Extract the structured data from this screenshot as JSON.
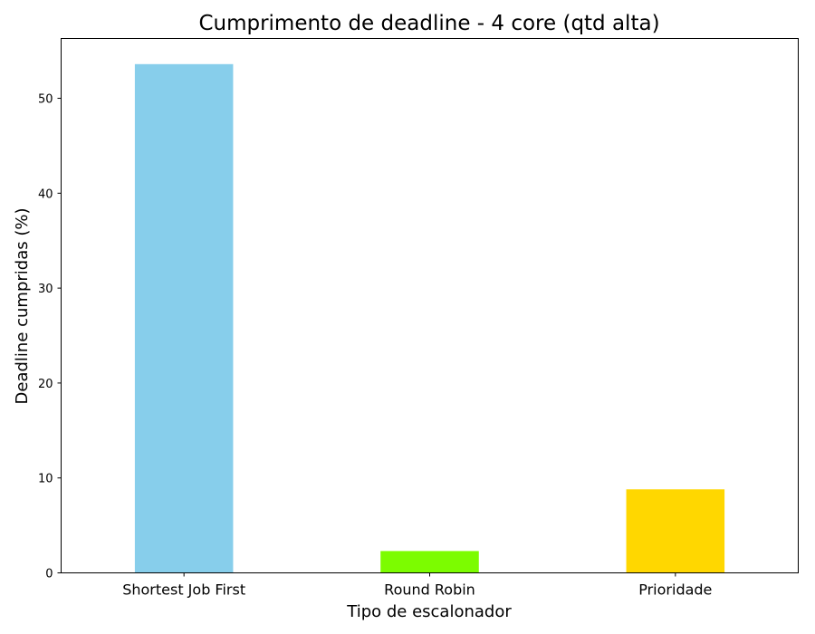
{
  "chart_data": {
    "type": "bar",
    "title": "Cumprimento de deadline - 4 core (qtd alta)",
    "xlabel": "Tipo de escalonador",
    "ylabel": "Deadline cumpridas (%)",
    "categories": [
      "Shortest Job First",
      "Round Robin",
      "Prioridade"
    ],
    "values": [
      53.6,
      2.3,
      8.8
    ],
    "colors": [
      "#87ceeb",
      "#7cfc00",
      "#ffd700"
    ],
    "ylim": [
      0,
      56.3
    ],
    "yticks": [
      0,
      10,
      20,
      30,
      40,
      50
    ],
    "grid": false,
    "legend": "none"
  }
}
